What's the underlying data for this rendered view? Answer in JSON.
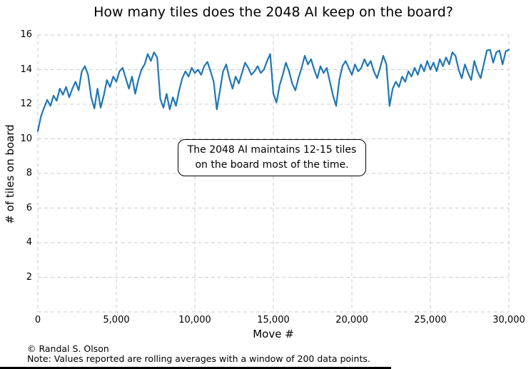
{
  "chart_data": {
    "type": "line",
    "title": "How many tiles does the 2048 AI keep on the board?",
    "xlabel": "Move #",
    "ylabel": "# of tiles on board",
    "xlim": [
      0,
      30000
    ],
    "ylim": [
      0,
      16
    ],
    "grid": "dashed",
    "grid_color": "#cccccc",
    "line_color": "#1f77b4",
    "x_axis": {
      "ticks": [
        0,
        5000,
        10000,
        15000,
        20000,
        25000,
        30000
      ],
      "tick_labels": [
        "0",
        "5,000",
        "10,000",
        "15,000",
        "20,000",
        "25,000",
        "30,000"
      ]
    },
    "y_axis": {
      "ticks": [
        2,
        4,
        6,
        8,
        10,
        12,
        14,
        16
      ],
      "tick_labels": [
        "2",
        "4",
        "6",
        "8",
        "10",
        "12",
        "14",
        "16"
      ],
      "gridline_values": [
        0,
        2,
        4,
        6,
        8,
        10,
        12,
        14,
        16
      ]
    },
    "series": [
      {
        "name": "tiles-on-board-rolling-average",
        "x": [
          0,
          200,
          400,
          600,
          800,
          1000,
          1200,
          1400,
          1600,
          1800,
          2000,
          2200,
          2400,
          2600,
          2800,
          3000,
          3200,
          3400,
          3600,
          3800,
          4000,
          4200,
          4400,
          4600,
          4800,
          5000,
          5200,
          5400,
          5600,
          5800,
          6000,
          6200,
          6400,
          6600,
          6800,
          7000,
          7200,
          7400,
          7600,
          7800,
          8000,
          8200,
          8400,
          8600,
          8800,
          9000,
          9200,
          9400,
          9600,
          9800,
          10000,
          10200,
          10400,
          10600,
          10800,
          11000,
          11200,
          11400,
          11600,
          11800,
          12000,
          12200,
          12400,
          12600,
          12800,
          13000,
          13200,
          13400,
          13600,
          13800,
          14000,
          14200,
          14400,
          14600,
          14800,
          15000,
          15200,
          15400,
          15600,
          15800,
          16000,
          16200,
          16400,
          16600,
          16800,
          17000,
          17200,
          17400,
          17600,
          17800,
          18000,
          18200,
          18400,
          18600,
          18800,
          19000,
          19200,
          19400,
          19600,
          19800,
          20000,
          20200,
          20400,
          20600,
          20800,
          21000,
          21200,
          21400,
          21600,
          21800,
          22000,
          22200,
          22400,
          22600,
          22800,
          23000,
          23200,
          23400,
          23600,
          23800,
          24000,
          24200,
          24400,
          24600,
          24800,
          25000,
          25200,
          25400,
          25600,
          25800,
          26000,
          26200,
          26400,
          26600,
          26800,
          27000,
          27200,
          27400,
          27600,
          27800,
          28000,
          28200,
          28400,
          28600,
          28800,
          29000,
          29200,
          29400,
          29600,
          29800,
          30000
        ],
        "y": [
          10.45,
          11.3,
          11.8,
          12.25,
          11.9,
          12.5,
          12.2,
          12.9,
          12.55,
          13.0,
          12.4,
          12.9,
          13.3,
          12.8,
          13.9,
          14.2,
          13.7,
          12.4,
          11.75,
          12.9,
          11.8,
          12.5,
          13.4,
          13.0,
          13.6,
          13.3,
          13.9,
          14.1,
          13.5,
          12.9,
          13.6,
          12.6,
          13.4,
          14.0,
          14.3,
          14.9,
          14.5,
          15.0,
          14.7,
          12.3,
          11.8,
          12.6,
          11.7,
          12.4,
          11.9,
          12.8,
          13.5,
          13.9,
          13.6,
          14.1,
          13.8,
          14.0,
          13.7,
          14.2,
          14.45,
          13.9,
          13.3,
          11.7,
          12.8,
          13.9,
          14.3,
          13.5,
          12.9,
          13.6,
          13.2,
          13.8,
          14.4,
          14.1,
          13.7,
          13.9,
          14.2,
          13.8,
          14.0,
          14.5,
          14.9,
          12.6,
          12.1,
          13.1,
          13.7,
          14.4,
          13.9,
          13.2,
          12.8,
          13.5,
          14.1,
          14.8,
          14.3,
          14.6,
          14.0,
          13.5,
          14.2,
          13.8,
          14.1,
          13.3,
          12.5,
          11.9,
          13.4,
          14.2,
          14.5,
          14.1,
          13.7,
          14.3,
          13.9,
          14.1,
          14.6,
          14.2,
          14.5,
          13.9,
          13.5,
          14.1,
          14.8,
          14.3,
          11.9,
          12.9,
          13.3,
          13.0,
          13.6,
          13.3,
          13.9,
          13.6,
          14.1,
          13.7,
          14.3,
          13.9,
          14.5,
          14.0,
          14.4,
          13.9,
          14.6,
          14.2,
          14.7,
          14.3,
          15.0,
          14.8,
          14.0,
          13.5,
          14.3,
          13.8,
          13.4,
          14.5,
          13.9,
          13.5,
          14.3,
          15.1,
          15.15,
          14.4,
          15.0,
          15.1,
          14.3,
          15.05,
          15.15
        ]
      }
    ],
    "annotation": {
      "line1": "The 2048 AI maintains 12-15 tiles",
      "line2": "on the board most of the time."
    },
    "credit": "© Randal S. Olson",
    "note": "Note: Values reported are rolling averages with a window of 200 data points."
  }
}
